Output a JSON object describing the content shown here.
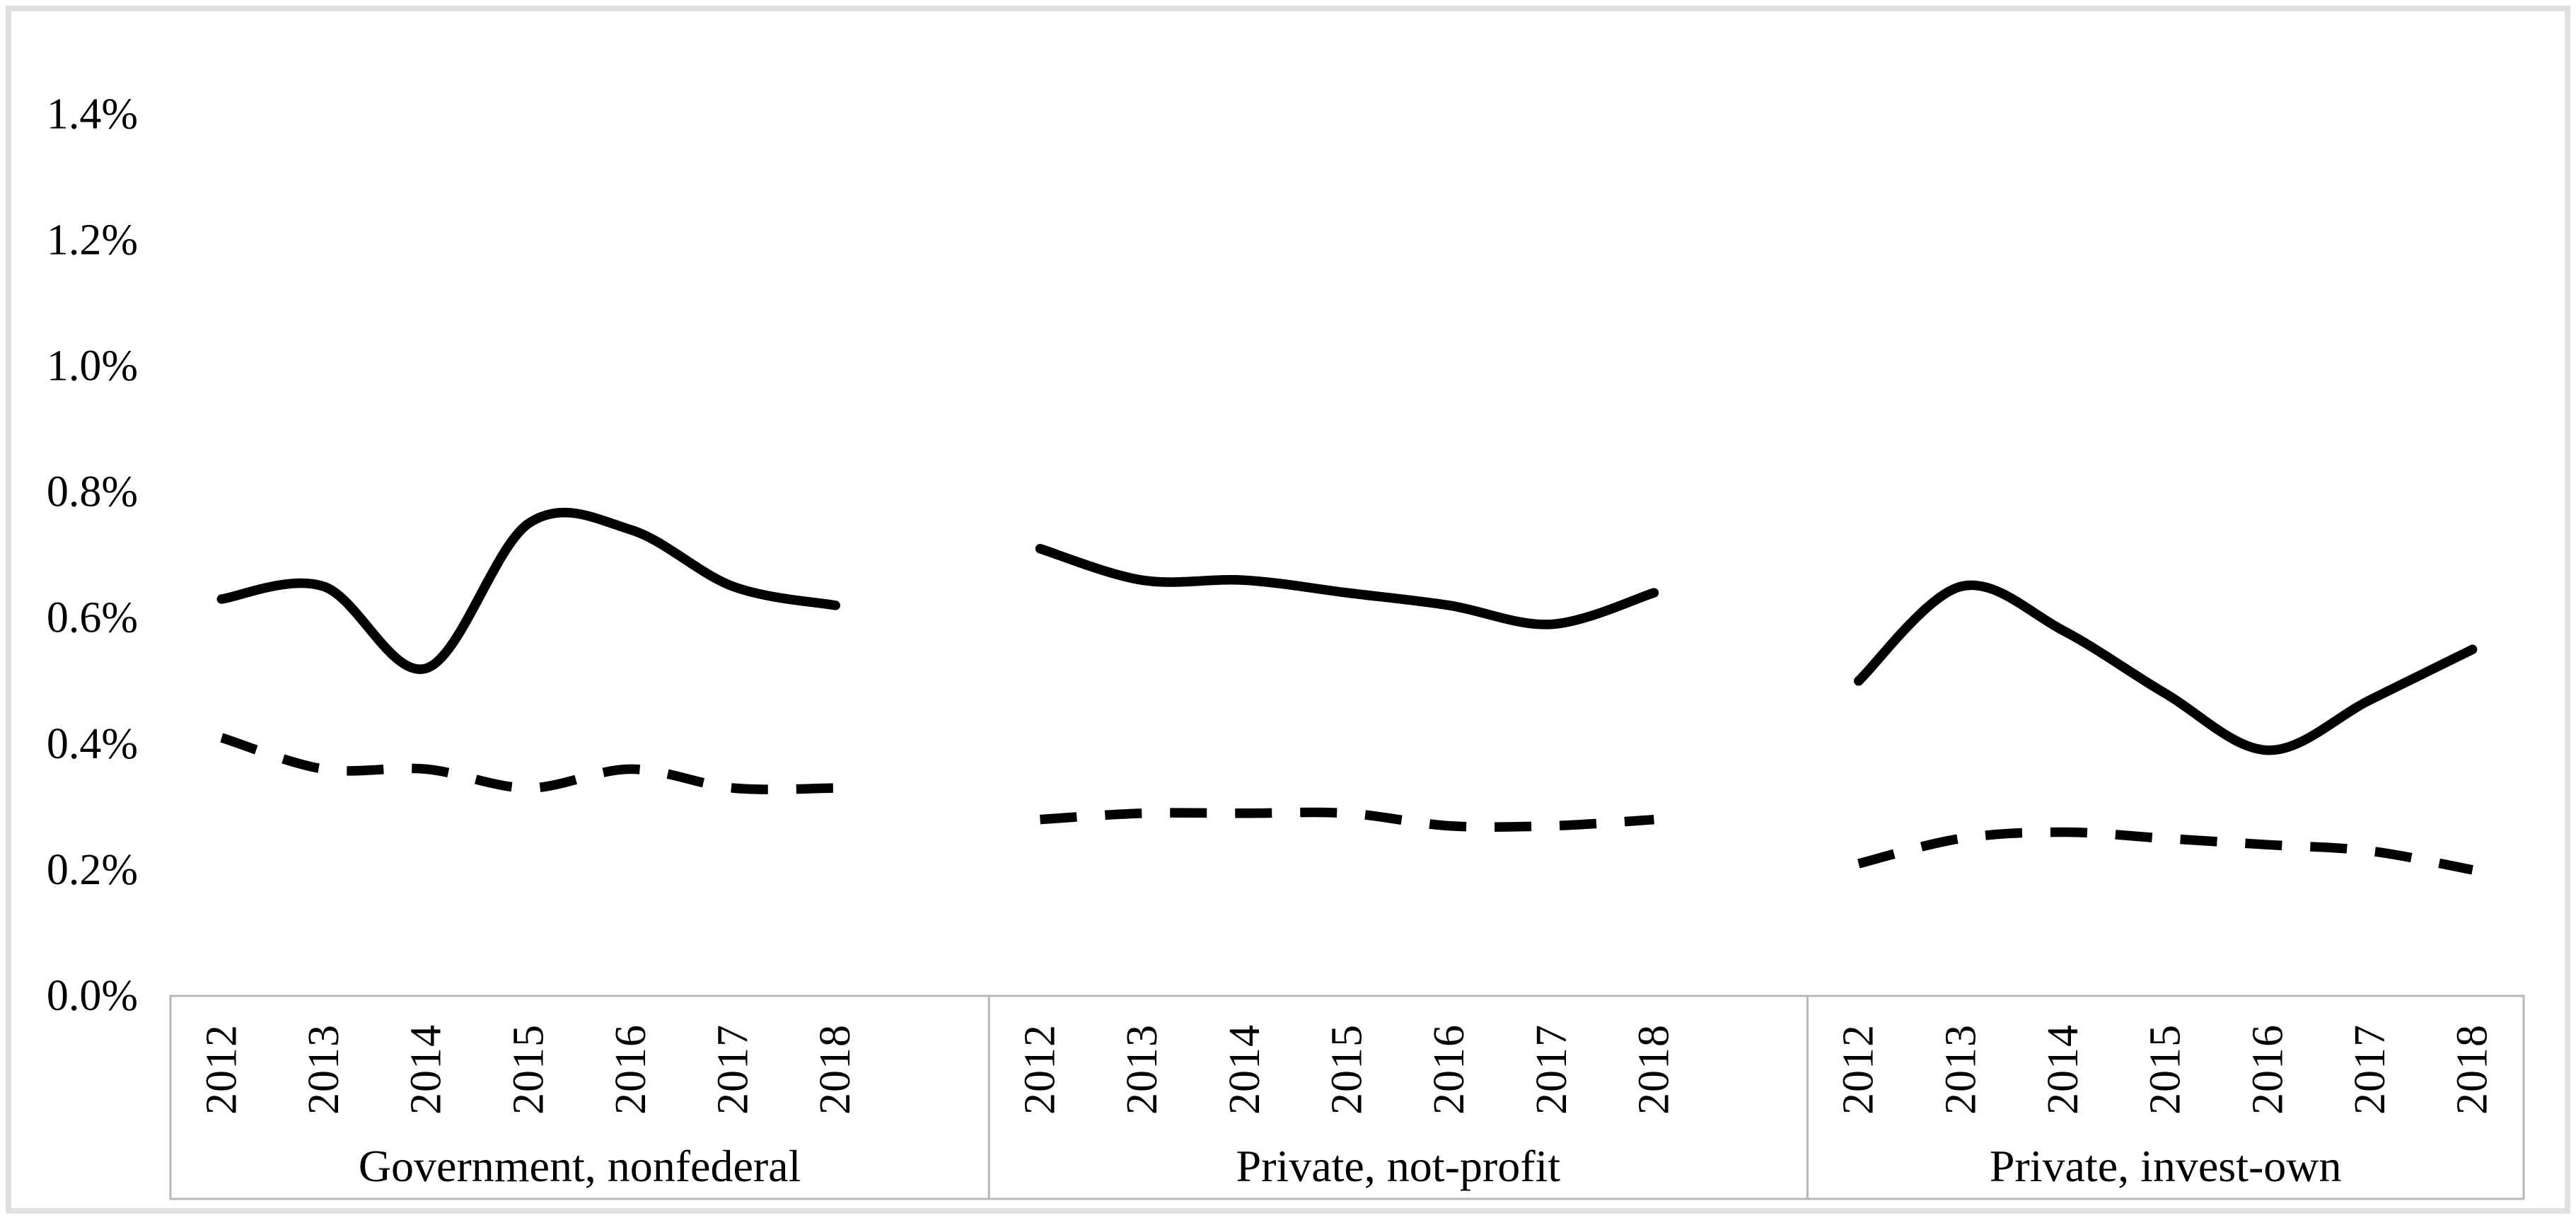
{
  "chart_data": {
    "type": "line",
    "title": "",
    "legend": "none",
    "gridlines": "none",
    "y_axis": {
      "unit": "%",
      "min": 0.0,
      "max": 1.4,
      "step": 0.2,
      "tick_labels": [
        "0.0%",
        "0.2%",
        "0.4%",
        "0.6%",
        "0.8%",
        "1.0%",
        "1.2%",
        "1.4%"
      ]
    },
    "x_categories": [
      "2012",
      "2013",
      "2014",
      "2015",
      "2016",
      "2017",
      "2018"
    ],
    "panels": [
      {
        "label": "Government, nonfederal",
        "series": [
          {
            "name": "solid-line",
            "style": "solid",
            "values": [
              0.63,
              0.65,
              0.52,
              0.75,
              0.74,
              0.65,
              0.62
            ]
          },
          {
            "name": "dashed-line",
            "style": "dashed",
            "values": [
              0.41,
              0.36,
              0.36,
              0.33,
              0.36,
              0.33,
              0.33
            ]
          }
        ]
      },
      {
        "label": "Private, not-profit",
        "series": [
          {
            "name": "solid-line",
            "style": "solid",
            "values": [
              0.71,
              0.66,
              0.66,
              0.64,
              0.62,
              0.59,
              0.64
            ]
          },
          {
            "name": "dashed-line",
            "style": "dashed",
            "values": [
              0.28,
              0.29,
              0.29,
              0.29,
              0.27,
              0.27,
              0.28
            ]
          }
        ]
      },
      {
        "label": "Private, invest-own",
        "series": [
          {
            "name": "solid-line",
            "style": "solid",
            "values": [
              0.5,
              0.65,
              0.58,
              0.48,
              0.39,
              0.47,
              0.55
            ]
          },
          {
            "name": "dashed-line",
            "style": "dashed",
            "values": [
              0.21,
              0.25,
              0.26,
              0.25,
              0.24,
              0.23,
              0.2
            ]
          }
        ]
      }
    ],
    "colors": {
      "series_line": "#000000",
      "axis_frame": "#b7b7b7",
      "outer_border": "#e0e0e0",
      "background": "#ffffff",
      "text": "#000000"
    }
  }
}
